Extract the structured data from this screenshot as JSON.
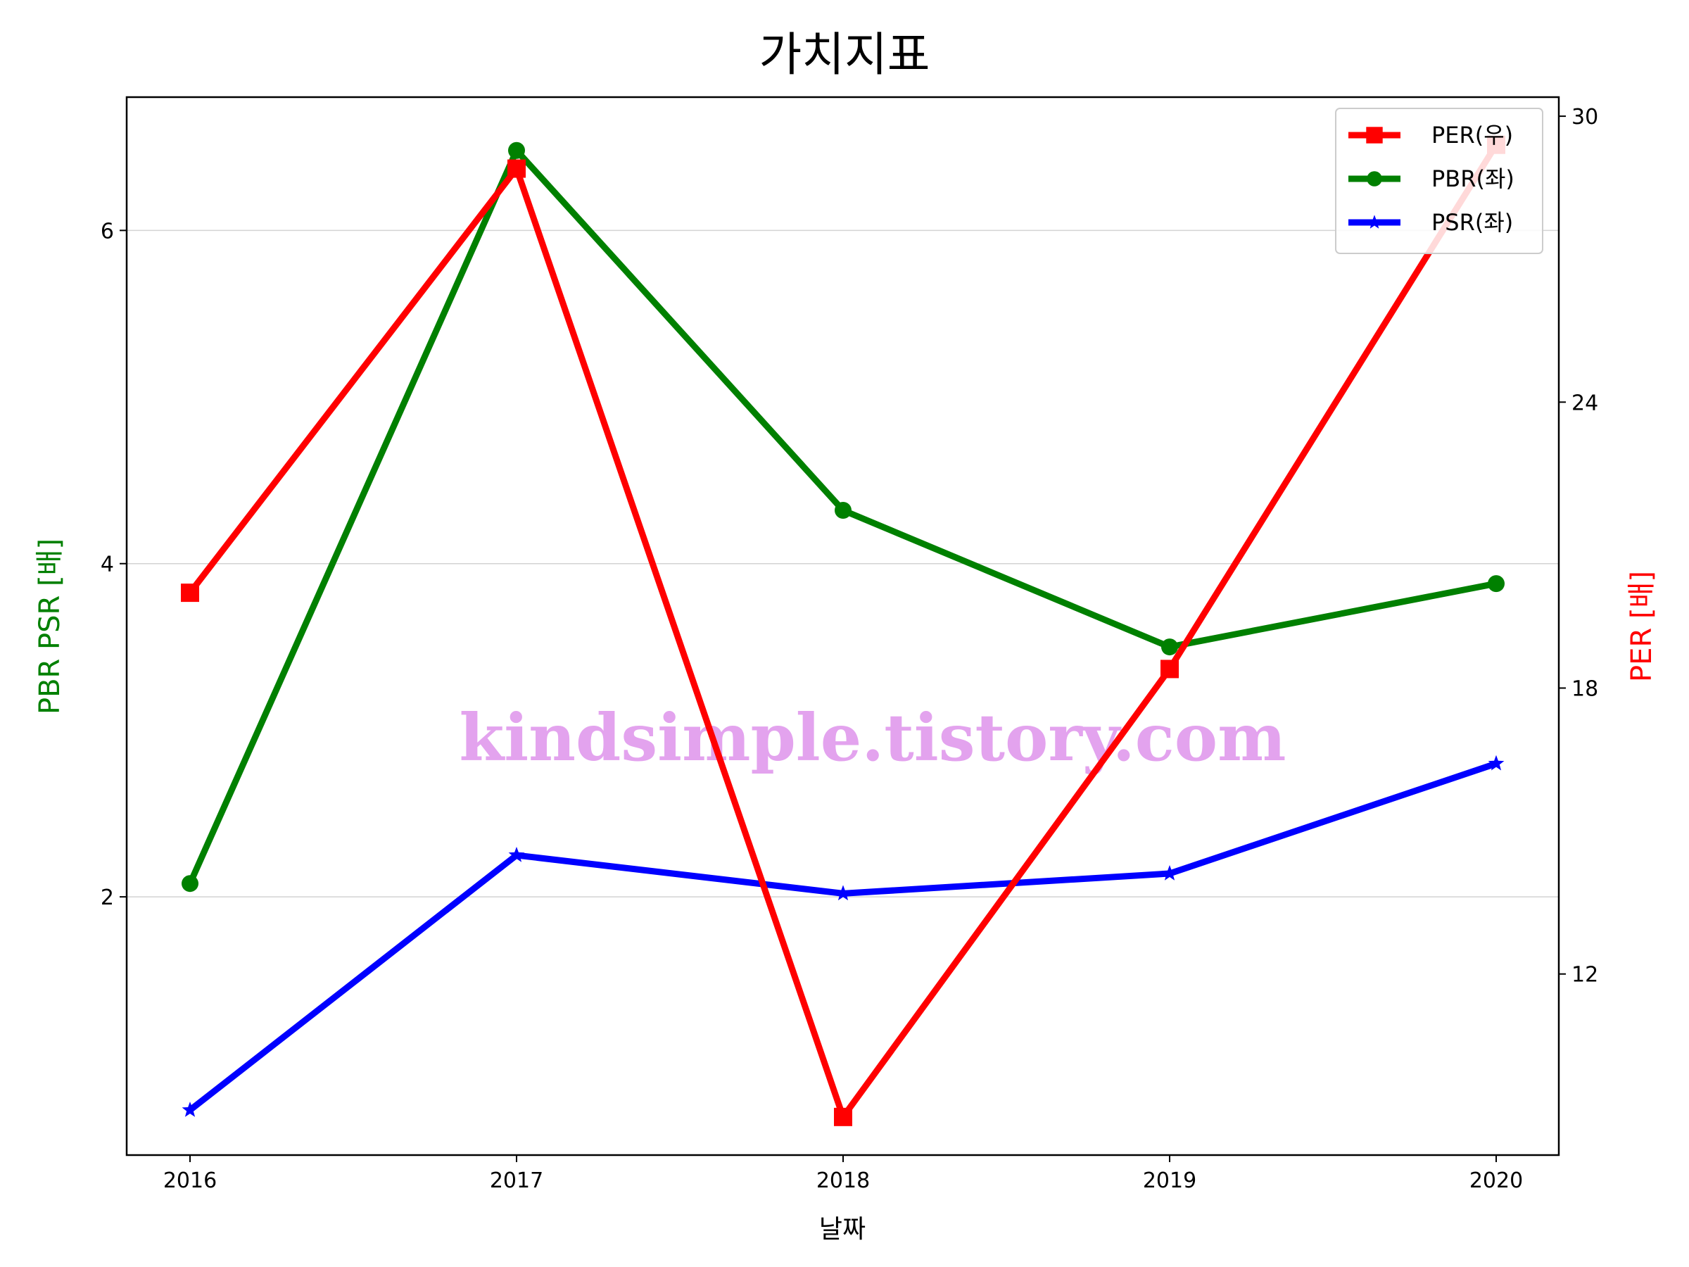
{
  "chart_data": {
    "type": "line",
    "title": "가치지표",
    "xlabel": "날짜",
    "ylabel_left": "PBR PSR [배]",
    "ylabel_right": "PER [배]",
    "categories": [
      "2016",
      "2017",
      "2018",
      "2019",
      "2020"
    ],
    "ylim_left": [
      0.45,
      6.8
    ],
    "yticks_left": [
      2,
      4,
      6
    ],
    "ylim_right": [
      8.2,
      30.4
    ],
    "yticks_right": [
      12,
      18,
      24,
      30
    ],
    "grid": "horizontal, left axis",
    "legend_position": "top-right",
    "series": [
      {
        "name": "PER(우)",
        "axis": "right",
        "color": "#ff0000",
        "marker": "square",
        "values": [
          20.0,
          28.9,
          9.0,
          18.4,
          29.4
        ]
      },
      {
        "name": "PBR(좌)",
        "axis": "left",
        "color": "#008000",
        "marker": "circle",
        "values": [
          2.08,
          6.48,
          4.32,
          3.5,
          3.88
        ]
      },
      {
        "name": "PSR(좌)",
        "axis": "left",
        "color": "#0000ff",
        "marker": "star",
        "values": [
          0.72,
          2.25,
          2.02,
          2.14,
          2.8
        ]
      }
    ],
    "watermark": "kindsimple.tistory.com"
  }
}
